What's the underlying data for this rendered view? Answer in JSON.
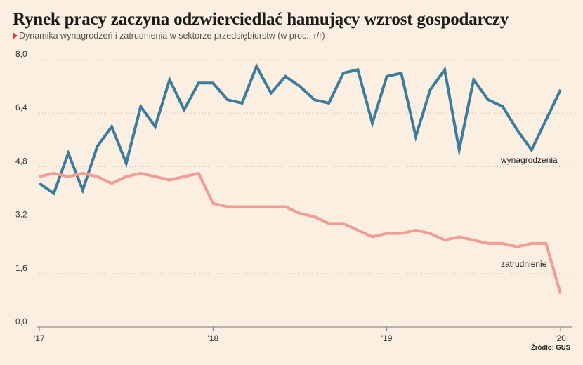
{
  "title": "Rynek pracy zaczyna odzwierciedlać hamujący wzrost gospodarczy",
  "subtitle": "Dynamika wynagrodzeń i zatrudnienia w sektorze przedsiębiorstw (w proc., r/r)",
  "source": "Źródło: GUS",
  "colors": {
    "wynagrodzenia": "#3c7c9c",
    "zatrudnienie": "#f29b97",
    "background": "#fbefe1"
  },
  "chart_data": {
    "type": "line",
    "title": "Rynek pracy zaczyna odzwierciedlać hamujący wzrost gospodarczy",
    "subtitle": "Dynamika wynagrodzeń i zatrudnienia w sektorze przedsiębiorstw (w proc., r/r)",
    "xlabel": "",
    "ylabel": "",
    "ylim": [
      0,
      8
    ],
    "yticks": [
      0,
      1.6,
      3.2,
      4.8,
      6.4,
      8.0
    ],
    "ytick_labels": [
      "0,0",
      "1,6",
      "3,2",
      "4,8",
      "6,4",
      "8,0"
    ],
    "xlim": [
      "2017-01",
      "2020-01"
    ],
    "xticks": [
      "2017-01",
      "2018-01",
      "2019-01",
      "2020-01"
    ],
    "xtick_labels": [
      "'17",
      "'18",
      "'19",
      "'20"
    ],
    "grid": "horizontal dotted",
    "x": [
      "2017-01",
      "2017-02",
      "2017-03",
      "2017-04",
      "2017-05",
      "2017-06",
      "2017-07",
      "2017-08",
      "2017-09",
      "2017-10",
      "2017-11",
      "2017-12",
      "2018-01",
      "2018-02",
      "2018-03",
      "2018-04",
      "2018-05",
      "2018-06",
      "2018-07",
      "2018-08",
      "2018-09",
      "2018-10",
      "2018-11",
      "2018-12",
      "2019-01",
      "2019-02",
      "2019-03",
      "2019-04",
      "2019-05",
      "2019-06",
      "2019-07",
      "2019-08",
      "2019-09",
      "2019-10",
      "2019-11",
      "2019-12",
      "2020-01"
    ],
    "series": [
      {
        "name": "wynagrodzenia",
        "values": [
          4.3,
          4.0,
          5.2,
          4.1,
          5.4,
          6.0,
          4.9,
          6.6,
          6.0,
          7.4,
          6.5,
          7.3,
          7.3,
          6.8,
          6.7,
          7.8,
          7.0,
          7.5,
          7.2,
          6.8,
          6.7,
          7.6,
          7.7,
          6.1,
          7.5,
          7.6,
          5.7,
          7.1,
          7.7,
          5.3,
          7.4,
          6.8,
          6.6,
          5.9,
          5.3,
          6.2,
          7.1
        ]
      },
      {
        "name": "zatrudnienie",
        "values": [
          4.5,
          4.6,
          4.5,
          4.6,
          4.5,
          4.3,
          4.5,
          4.6,
          4.5,
          4.4,
          4.5,
          4.6,
          3.7,
          3.6,
          3.6,
          3.6,
          3.6,
          3.6,
          3.4,
          3.3,
          3.1,
          3.1,
          2.9,
          2.7,
          2.8,
          2.8,
          2.9,
          2.8,
          2.6,
          2.7,
          2.6,
          2.5,
          2.5,
          2.4,
          2.5,
          2.5,
          1.0
        ]
      }
    ]
  }
}
